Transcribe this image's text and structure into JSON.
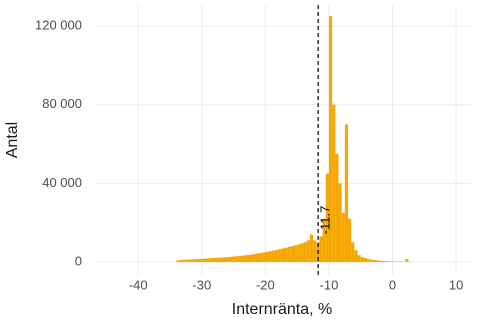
{
  "chart_data": {
    "type": "histogram",
    "x_label": "Internränta, %",
    "y_label": "Antal",
    "color": "#f5a800",
    "grid": true,
    "bins": [
      -34,
      -33.5,
      -33,
      -32.5,
      -32,
      -31.5,
      -31,
      -30.5,
      -30,
      -29.5,
      -29,
      -28.5,
      -28,
      -27.5,
      -27,
      -26.5,
      -26,
      -25.5,
      -25,
      -24.5,
      -24,
      -23.5,
      -23,
      -22.5,
      -22,
      -21.5,
      -21,
      -20.5,
      -20,
      -19.5,
      -19,
      -18.5,
      -18,
      -17.5,
      -17,
      -16.5,
      -16,
      -15.5,
      -15,
      -14.5,
      -14,
      -13.5,
      -13,
      -12.5,
      -12,
      -11.5,
      -11,
      -10.5,
      -10,
      -9.5,
      -9,
      -8.5,
      -8,
      -7.5,
      -7,
      -6.5,
      -6,
      -5.5,
      -5,
      -4.5,
      -4,
      -3.5,
      -3,
      -2.5,
      -2,
      -1.5,
      -1,
      -0.5,
      0,
      0.5,
      1,
      1.5,
      2,
      2.5,
      3
    ],
    "values": [
      800,
      1000,
      1200,
      1200,
      1300,
      1400,
      1500,
      1600,
      1700,
      1800,
      1900,
      2000,
      2100,
      2200,
      2300,
      2400,
      2500,
      2700,
      2900,
      3000,
      3200,
      3400,
      3600,
      3800,
      4000,
      4300,
      4600,
      4900,
      5200,
      5500,
      5800,
      6100,
      6500,
      6900,
      7300,
      7700,
      8100,
      8500,
      9000,
      9500,
      10000,
      11000,
      14000,
      11000,
      10000,
      13000,
      22000,
      45000,
      125000,
      80000,
      55000,
      40000,
      25000,
      70000,
      22000,
      10000,
      6000,
      3500,
      2500,
      2000,
      1500,
      1200,
      1000,
      800,
      600,
      500,
      400,
      300,
      300,
      200,
      200,
      150,
      1500,
      100
    ],
    "xlim": [
      -46.8,
      12.5
    ],
    "xticks": [
      -40,
      -30,
      -20,
      -10,
      0,
      10
    ],
    "ylim": [
      -6600,
      130700
    ],
    "yticks": [
      0,
      {
        "value": 40000,
        "label": "40 000"
      },
      {
        "value": 80000,
        "label": "80 000"
      },
      {
        "value": 120000,
        "label": "120 000"
      }
    ],
    "reference_line": {
      "value": -11.7,
      "label": "-11.7"
    }
  }
}
